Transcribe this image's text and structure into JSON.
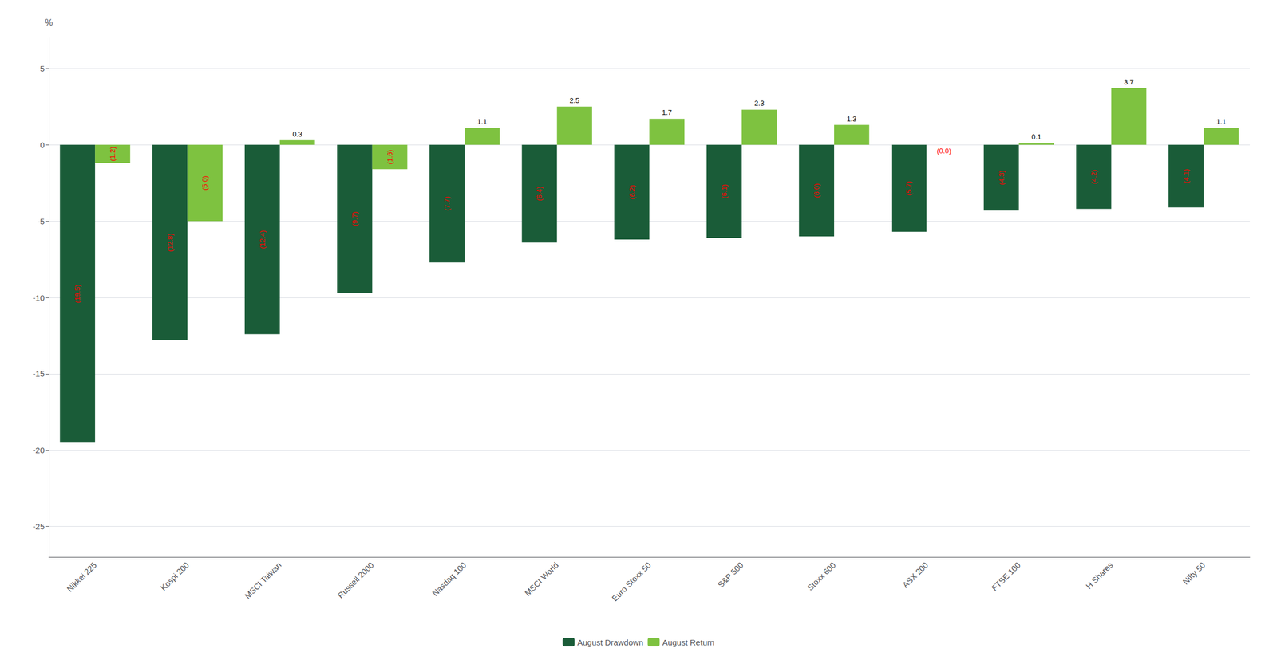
{
  "chart_data": {
    "type": "bar",
    "categories": [
      "Nikkei 225",
      "Kospi 200",
      "MSCI Taiwan",
      "Russell 2000",
      "Nasdaq 100",
      "MSCI World",
      "Euro Stoxx 50",
      "S&P 500",
      "Stoxx 600",
      "ASX 200",
      "FTSE 100",
      "H Shares",
      "Nifty 50"
    ],
    "series": [
      {
        "name": "August Drawdown",
        "color": "#1a5c38",
        "values": [
          -19.5,
          -12.8,
          -12.4,
          -9.7,
          -7.7,
          -6.4,
          -6.2,
          -6.1,
          -6.0,
          -5.7,
          -4.3,
          -4.2,
          -4.1
        ],
        "value_labels": [
          "(19.5)",
          "(12.8)",
          "(12.4)",
          "(9.7)",
          "(7.7)",
          "(6.4)",
          "(6.2)",
          "(6.1)",
          "(6.0)",
          "(5.7)",
          "(4.3)",
          "(4.2)",
          "(4.1)"
        ]
      },
      {
        "name": "August Return",
        "color": "#7ec240",
        "values": [
          -1.2,
          -5.0,
          0.3,
          -1.6,
          1.1,
          2.5,
          1.7,
          2.3,
          1.3,
          0.0,
          0.1,
          3.7,
          1.1
        ],
        "value_labels": [
          "(1.2)",
          "(5.0)",
          "0.3",
          "(1.6)",
          "1.1",
          "2.5",
          "1.7",
          "2.3",
          "1.3",
          "(0.0)",
          "0.1",
          "3.7",
          "1.1"
        ]
      }
    ],
    "ylabel": "%",
    "ylim": [
      -27,
      7
    ],
    "yticks": [
      5,
      0,
      -5,
      -10,
      -15,
      -20,
      -25
    ],
    "grid": true,
    "legend": "bottom",
    "data_labels": true
  }
}
